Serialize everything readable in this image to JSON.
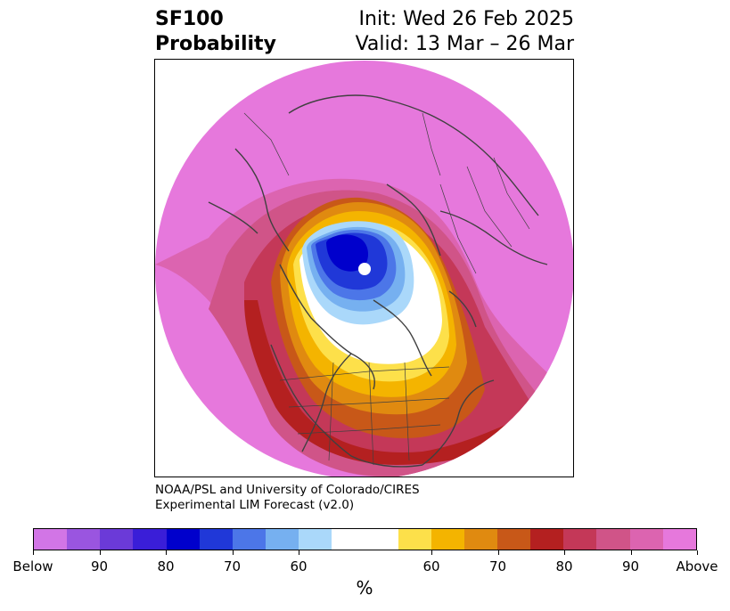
{
  "header": {
    "variable": "SF100",
    "subtitle": "Probability",
    "init": "Init: Wed 26 Feb 2025",
    "valid": "Valid: 13 Mar – 26 Mar"
  },
  "credit": {
    "line1": "NOAA/PSL and University of Colorado/CIRES",
    "line2": "Experimental LIM Forecast (v2.0)"
  },
  "colorbar": {
    "unit": "%",
    "labels": [
      "Below",
      "90",
      "80",
      "70",
      "60",
      "60",
      "70",
      "80",
      "90",
      "Above"
    ],
    "colors": [
      "#d275e6",
      "#9a55e0",
      "#6b3ad8",
      "#3a1ed8",
      "#0000cc",
      "#2038d8",
      "#4c76e8",
      "#76b0f0",
      "#aad8fa",
      "#ffffff",
      "#fde04a",
      "#f4b400",
      "#e08a10",
      "#c85818",
      "#b42020",
      "#c43858",
      "#d05488",
      "#dc64b0",
      "#e678dc"
    ],
    "widths": [
      1,
      1,
      1,
      1,
      1,
      1,
      1,
      1,
      1,
      2,
      1,
      1,
      1,
      1,
      1,
      1,
      1,
      1,
      1
    ]
  },
  "map": {
    "projection": "north-polar-stereographic",
    "field_colors": {
      "above_strong": "#e678dc",
      "above_high": "#dc64b0",
      "above_mid": "#d05488",
      "above_low": "#c43858",
      "red": "#b42020",
      "rust": "#c85818",
      "orange": "#e08a10",
      "gold": "#f4b400",
      "yellow": "#fde04a",
      "neutral": "#ffffff",
      "below_light": "#aad8fa",
      "below_sky": "#76b0f0",
      "below_mid": "#4c76e8",
      "below_deep": "#2038d8",
      "below_strong": "#0000cc",
      "coastline": "#404040"
    }
  }
}
